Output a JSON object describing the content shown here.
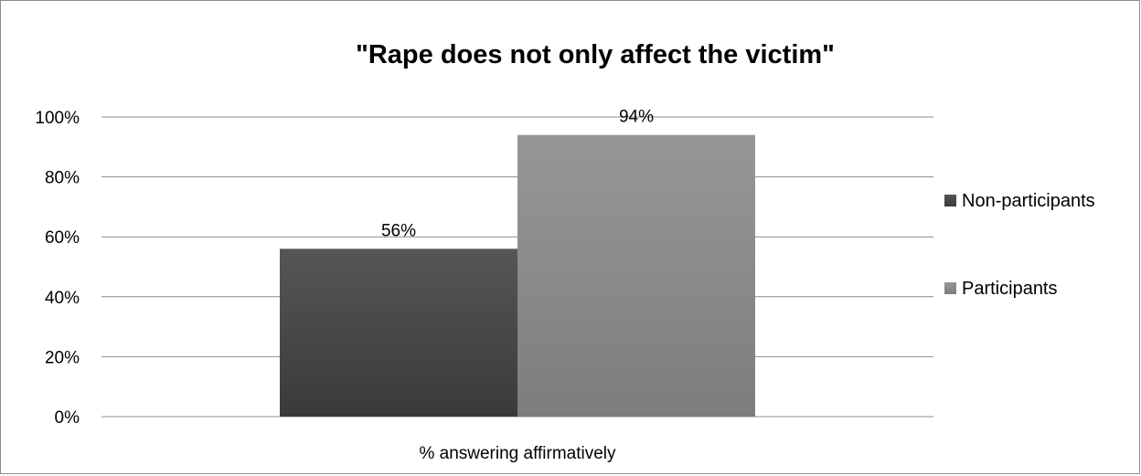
{
  "chart_data": {
    "type": "bar",
    "title": "\"Rape does not only affect the victim\"",
    "xlabel": "",
    "ylabel": "",
    "categories": [
      "% answering affirmatively"
    ],
    "series": [
      {
        "name": "Non-participants",
        "values": [
          0.56
        ],
        "color": "#4d4d4d",
        "label": "56%"
      },
      {
        "name": "Participants",
        "values": [
          0.94
        ],
        "color": "#8c8c8c",
        "label": "94%"
      }
    ],
    "ylim": [
      0,
      1
    ],
    "yticks": [
      "0%",
      "20%",
      "40%",
      "60%",
      "80%",
      "100%"
    ],
    "grid": true,
    "legend_position": "right"
  }
}
